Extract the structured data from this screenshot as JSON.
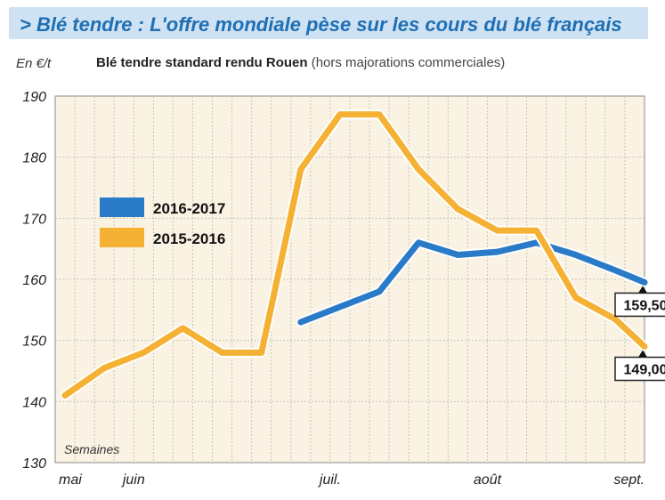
{
  "title": "> Blé tendre : L'offre mondiale pèse sur les cours du blé français",
  "chart_data": {
    "type": "line",
    "unit_label": "En €/t",
    "subtitle": "Blé tendre standard rendu Rouen",
    "subtitle_note": "(hors majorations commerciales)",
    "xlabel": "Semaines",
    "x_tick_labels": [
      "mai",
      "juin",
      "juil.",
      "août",
      "sept."
    ],
    "x_tick_weeks": [
      0,
      4,
      14,
      22,
      29
    ],
    "y_ticks": [
      130,
      140,
      150,
      160,
      170,
      180,
      190
    ],
    "ylim": [
      130,
      190
    ],
    "xlim": [
      0,
      30
    ],
    "grid": true,
    "legend_position": "center-left",
    "series": [
      {
        "name": "2016-2017",
        "color": "#2a7bc7",
        "points": [
          [
            12.5,
            153
          ],
          [
            14.5,
            155.5
          ],
          [
            16.5,
            158
          ],
          [
            18.5,
            166
          ],
          [
            20.5,
            164
          ],
          [
            22.5,
            164.5
          ],
          [
            24.5,
            166
          ],
          [
            26.5,
            164
          ],
          [
            28.5,
            161.5
          ],
          [
            30,
            159.5
          ]
        ]
      },
      {
        "name": "2015-2016",
        "color": "#f5b133",
        "points": [
          [
            0.5,
            141
          ],
          [
            2.5,
            145.5
          ],
          [
            4.5,
            148
          ],
          [
            6.5,
            152
          ],
          [
            8.5,
            148
          ],
          [
            10.5,
            148
          ],
          [
            12.5,
            178
          ],
          [
            14.5,
            187
          ],
          [
            16.5,
            187
          ],
          [
            18.5,
            178
          ],
          [
            20.5,
            171.5
          ],
          [
            22.5,
            168
          ],
          [
            24.5,
            168
          ],
          [
            26.5,
            157
          ],
          [
            28.5,
            153.5
          ],
          [
            30,
            149
          ]
        ]
      }
    ],
    "annotations": [
      {
        "text": "159,50",
        "x": 30,
        "y": 159.5,
        "position": "below"
      },
      {
        "text": "149,00",
        "x": 30,
        "y": 149,
        "position": "below"
      }
    ]
  }
}
